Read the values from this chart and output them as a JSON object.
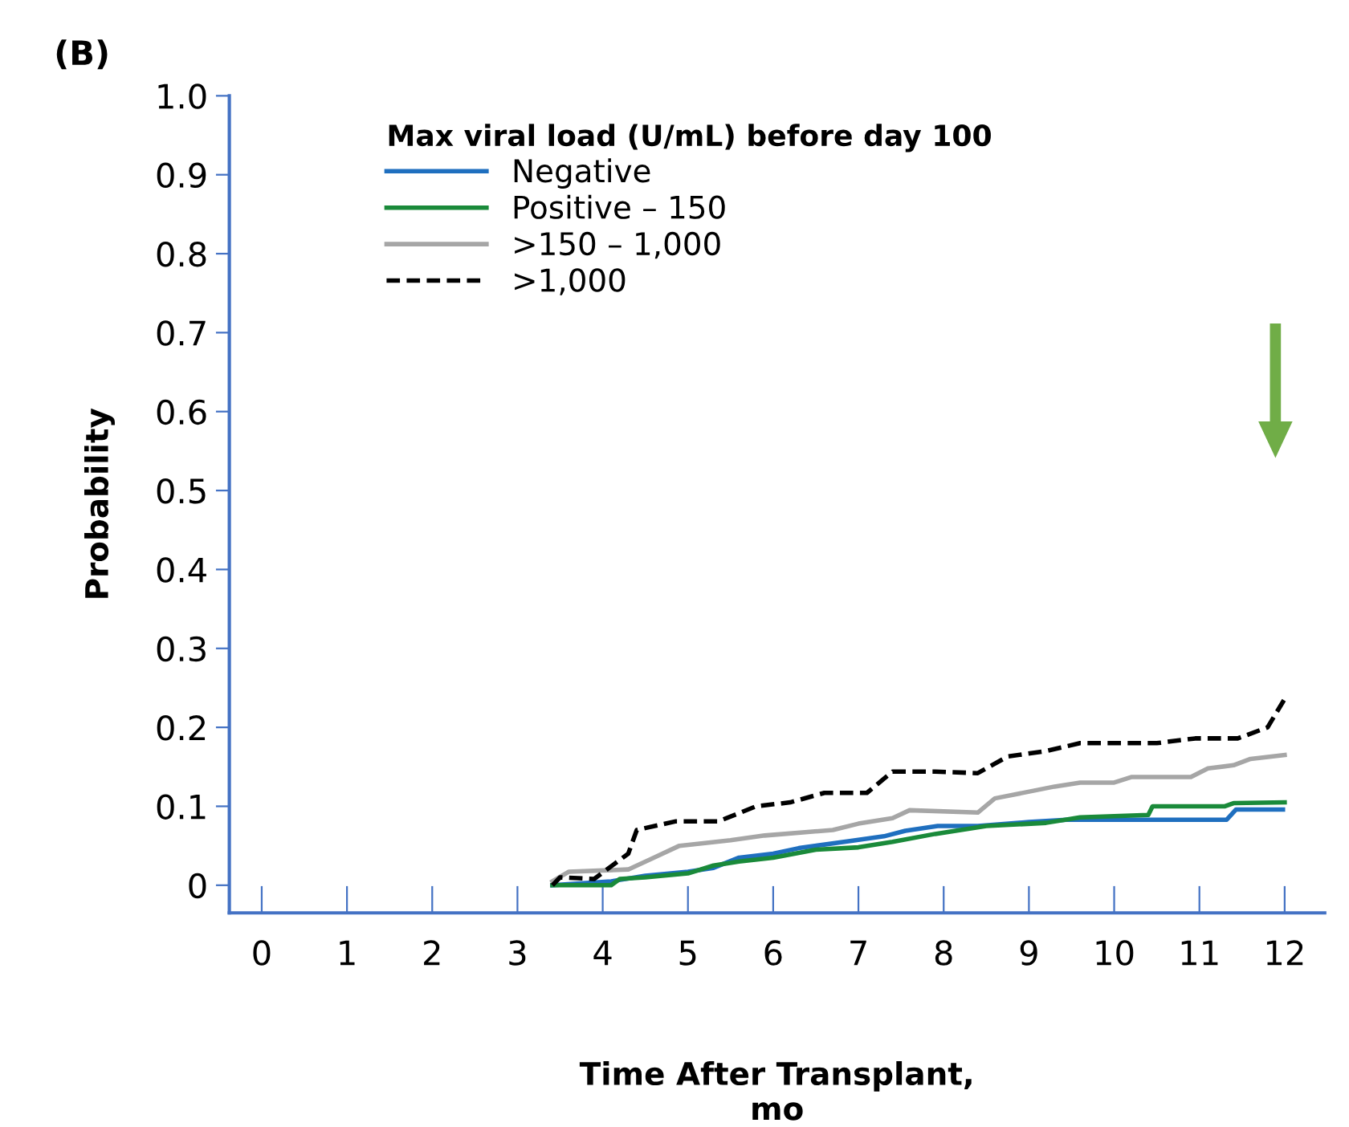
{
  "chart_data": {
    "type": "line",
    "title": "(B)",
    "xlabel": "Time After Transplant,\nmo",
    "ylabel": "Probability",
    "legend_title": "Max viral load (U/mL) before day 100",
    "xlim": [
      -0.38,
      12.47
    ],
    "ylim": [
      -0.035,
      1.0
    ],
    "xticks": [
      0,
      1,
      2,
      3,
      4,
      5,
      6,
      7,
      8,
      9,
      10,
      11,
      12
    ],
    "yticks": [
      {
        "value": 0,
        "label": "0"
      },
      0.1,
      0.2,
      0.3,
      0.4,
      0.5,
      0.6,
      0.7,
      0.8,
      0.9,
      {
        "value": 1.0,
        "label": "1.0"
      }
    ],
    "grid": false,
    "legend": "top",
    "marker": "none",
    "series": [
      {
        "name": "Negative",
        "color": "#1f6fbf",
        "line_style": "solid",
        "x": [
          3.41,
          4.1,
          4.5,
          5.0,
          5.3,
          5.6,
          6.0,
          6.3,
          6.9,
          7.3,
          7.55,
          7.93,
          8.4,
          9.0,
          9.44,
          10.4,
          11.32,
          11.43,
          11.98
        ],
        "values": [
          0,
          0.005,
          0.012,
          0.017,
          0.022,
          0.035,
          0.04,
          0.047,
          0.056,
          0.062,
          0.069,
          0.075,
          0.075,
          0.08,
          0.083,
          0.083,
          0.083,
          0.096,
          0.096
        ]
      },
      {
        "name": "Positive – 150",
        "color": "#1a8a3a",
        "line_style": "solid",
        "x": [
          3.41,
          4.1,
          4.2,
          4.5,
          5.0,
          5.3,
          5.6,
          6.0,
          6.5,
          7.0,
          7.4,
          7.9,
          8.5,
          9.2,
          9.6,
          10.4,
          10.45,
          11.3,
          11.4,
          12.0
        ],
        "values": [
          0,
          0,
          0.008,
          0.01,
          0.015,
          0.025,
          0.03,
          0.035,
          0.045,
          0.048,
          0.055,
          0.065,
          0.075,
          0.079,
          0.086,
          0.089,
          0.1,
          0.1,
          0.104,
          0.105
        ]
      },
      {
        "name": ">150 – 1,000",
        "color": "#a6a6a6",
        "line_style": "solid",
        "x": [
          3.41,
          3.6,
          4.3,
          4.6,
          4.9,
          5.5,
          5.9,
          6.7,
          7.0,
          7.4,
          7.6,
          8.4,
          8.6,
          9.3,
          9.6,
          10.0,
          10.2,
          10.9,
          11.1,
          11.4,
          11.6,
          12.0
        ],
        "values": [
          0.005,
          0.017,
          0.02,
          0.035,
          0.05,
          0.057,
          0.063,
          0.07,
          0.078,
          0.085,
          0.095,
          0.092,
          0.11,
          0.125,
          0.13,
          0.13,
          0.137,
          0.137,
          0.148,
          0.152,
          0.16,
          0.165
        ]
      },
      {
        "name": ">1,000",
        "color": "#000000",
        "line_style": "dashed",
        "x": [
          3.41,
          3.5,
          3.9,
          4.3,
          4.4,
          4.86,
          5.36,
          5.8,
          6.2,
          6.6,
          7.1,
          7.4,
          7.9,
          8.4,
          8.75,
          9.2,
          9.6,
          10.0,
          10.5,
          10.95,
          11.45,
          11.8,
          12.0
        ],
        "values": [
          0,
          0.01,
          0.008,
          0.04,
          0.07,
          0.081,
          0.081,
          0.1,
          0.105,
          0.117,
          0.117,
          0.144,
          0.144,
          0.142,
          0.163,
          0.17,
          0.18,
          0.18,
          0.18,
          0.186,
          0.186,
          0.2,
          0.236
        ]
      }
    ]
  }
}
